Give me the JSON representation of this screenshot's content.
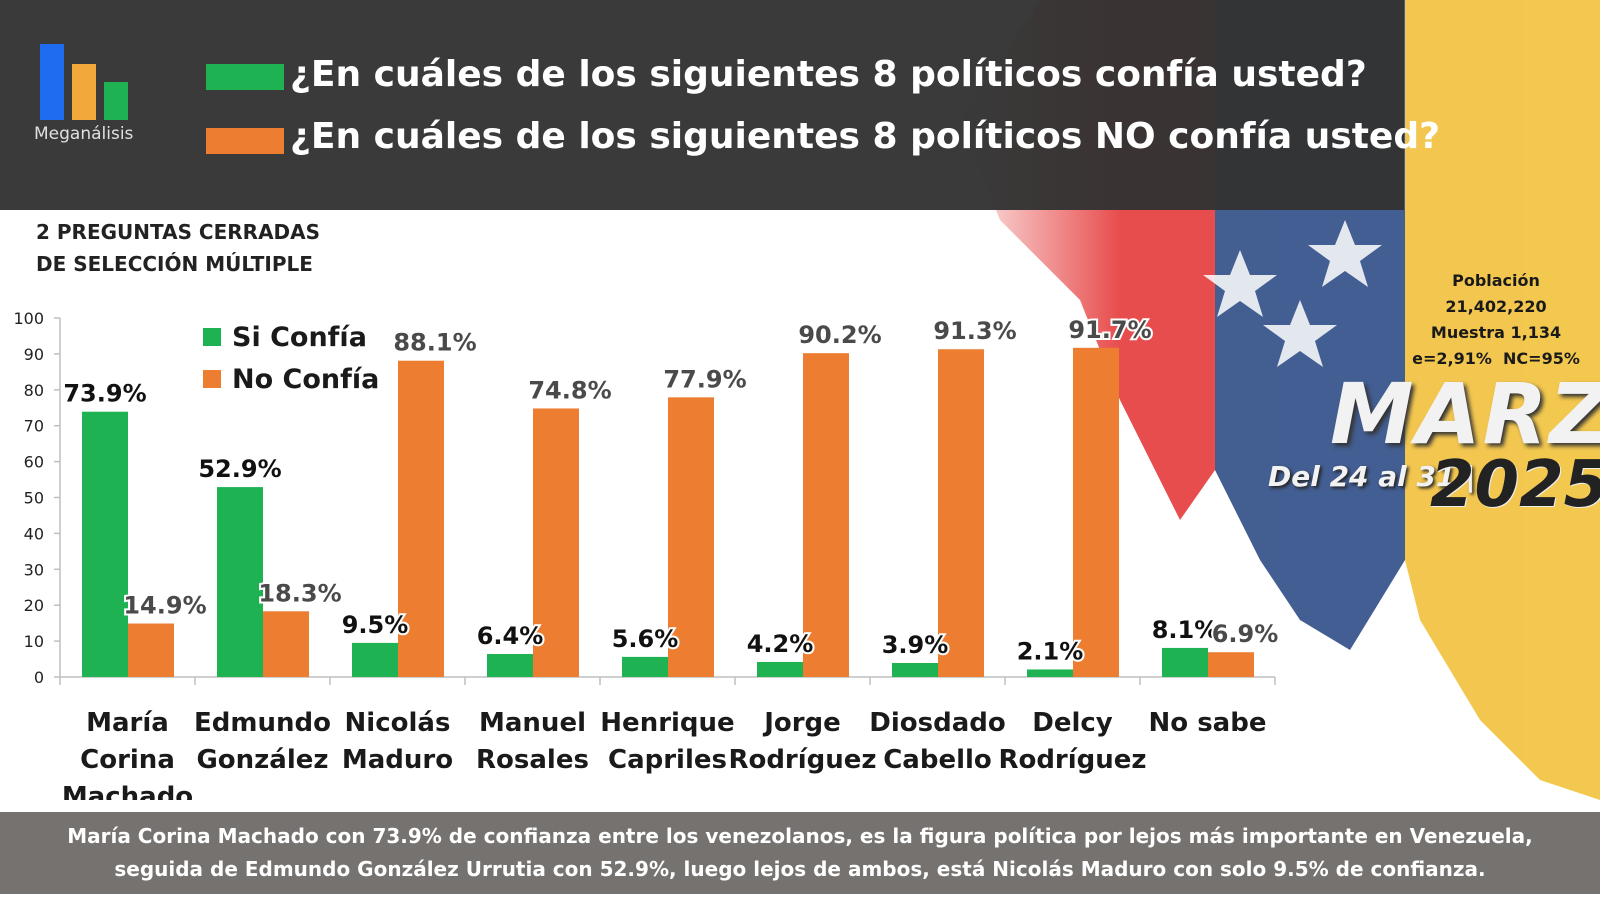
{
  "brand": {
    "name": "Meganálisis"
  },
  "header": {
    "question_trust": "¿En cuáles de los siguientes 8 políticos confía usted?",
    "question_distrust": "¿En cuáles de los siguientes 8 políticos NO confía usted?"
  },
  "subtitle": {
    "line1": "2 PREGUNTAS CERRADAS",
    "line2": "DE SELECCIÓN MÚLTIPLE"
  },
  "survey": {
    "population_label": "Población",
    "population_value": "21,402,220",
    "sample": "Muestra 1,134",
    "error": "e=2,91%  NC=95%",
    "month": "MARZO",
    "dates": "Del 24 al 31 |",
    "year": "2025"
  },
  "footer": {
    "line1": "María Corina Machado con 73.9% de confianza entre los venezolanos, es la figura política por lejos más importante en Venezuela,",
    "line2": "seguida de Edmundo González Urrutia con 52.9%, luego lejos de ambos, está Nicolás Maduro con solo 9.5% de confianza."
  },
  "colors": {
    "trust": "#1fb253",
    "distrust": "#ec7d31",
    "header_bg": "#323232",
    "footer_bg": "#767270"
  },
  "chart_data": {
    "type": "bar",
    "categories": [
      [
        "María",
        "Corina",
        "Machado"
      ],
      [
        "Edmundo",
        "González"
      ],
      [
        "Nicolás",
        "Maduro"
      ],
      [
        "Manuel",
        "Rosales"
      ],
      [
        "Henrique",
        "Capriles"
      ],
      [
        "Jorge",
        "Rodríguez"
      ],
      [
        "Diosdado",
        "Cabello"
      ],
      [
        "Delcy",
        "Rodríguez"
      ],
      [
        "No sabe"
      ]
    ],
    "series": [
      {
        "name": "Si Confía",
        "color": "#1fb253",
        "values": [
          73.9,
          52.9,
          9.5,
          6.4,
          5.6,
          4.2,
          3.9,
          2.1,
          8.1
        ],
        "labels": [
          "73.9%",
          "52.9%",
          "9.5%",
          "6.4%",
          "5.6%",
          "4.2%",
          "3.9%",
          "2.1%",
          "8.1%"
        ]
      },
      {
        "name": "No Confía",
        "color": "#ec7d31",
        "values": [
          14.9,
          18.3,
          88.1,
          74.8,
          77.9,
          90.2,
          91.3,
          91.7,
          6.9
        ],
        "labels": [
          "14.9%",
          "18.3%",
          "88.1%",
          "74.8%",
          "77.9%",
          "90.2%",
          "91.3%",
          "91.7%",
          "6.9%"
        ]
      }
    ],
    "ylim": [
      0,
      100
    ],
    "yticks": [
      0,
      10,
      20,
      30,
      40,
      50,
      60,
      70,
      80,
      90,
      100
    ],
    "legend_position": "top-left",
    "grid": false
  }
}
